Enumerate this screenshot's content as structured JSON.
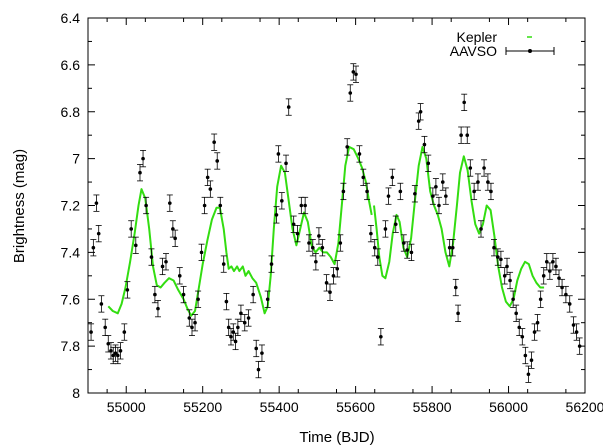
{
  "chart_data": {
    "type": "scatter",
    "xlabel": "Time (BJD)",
    "ylabel": "Brightness (mag)",
    "xlim": [
      54900,
      56200
    ],
    "ylim": [
      6.4,
      8.0
    ],
    "y_inverted": true,
    "grid": false,
    "legend_position": "top-right",
    "x_ticks": [
      {
        "value": 55000,
        "label": "55000"
      },
      {
        "value": 55200,
        "label": "55200"
      },
      {
        "value": 55400,
        "label": "55400"
      },
      {
        "value": 55600,
        "label": "55600"
      },
      {
        "value": 55800,
        "label": "55800"
      },
      {
        "value": 56000,
        "label": "56000"
      },
      {
        "value": 56200,
        "label": "56200"
      }
    ],
    "y_ticks": [
      {
        "value": 6.4,
        "label": "6.4"
      },
      {
        "value": 6.6,
        "label": "6.6"
      },
      {
        "value": 6.8,
        "label": "6.8"
      },
      {
        "value": 7.0,
        "label": "7"
      },
      {
        "value": 7.2,
        "label": "7.2"
      },
      {
        "value": 7.4,
        "label": "7.4"
      },
      {
        "value": 7.6,
        "label": "7.6"
      },
      {
        "value": 7.8,
        "label": "7.8"
      },
      {
        "value": 8.0,
        "label": "8"
      }
    ],
    "series": [
      {
        "name": "Kepler",
        "kind": "line",
        "color": "#33dd11",
        "segments": [
          [
            [
              54953,
              7.63
            ],
            [
              54965,
              7.65
            ],
            [
              54978,
              7.66
            ],
            [
              54988,
              7.62
            ],
            [
              54998,
              7.55
            ],
            [
              55010,
              7.44
            ],
            [
              55022,
              7.32
            ],
            [
              55032,
              7.2
            ],
            [
              55040,
              7.13
            ],
            [
              55050,
              7.17
            ],
            [
              55060,
              7.3
            ],
            [
              55070,
              7.46
            ],
            [
              55080,
              7.54
            ],
            [
              55090,
              7.55
            ],
            [
              55100,
              7.53
            ],
            [
              55112,
              7.51
            ],
            [
              55124,
              7.52
            ],
            [
              55136,
              7.56
            ],
            [
              55150,
              7.6
            ],
            [
              55160,
              7.64
            ],
            [
              55170,
              7.67
            ],
            [
              55180,
              7.65
            ],
            [
              55190,
              7.55
            ],
            [
              55200,
              7.45
            ],
            [
              55212,
              7.35
            ],
            [
              55224,
              7.26
            ],
            [
              55236,
              7.21
            ],
            [
              55245,
              7.21
            ],
            [
              55255,
              7.3
            ],
            [
              55262,
              7.4
            ],
            [
              55268,
              7.47
            ],
            [
              55275,
              7.46
            ],
            [
              55282,
              7.48
            ],
            [
              55290,
              7.46
            ],
            [
              55296,
              7.48
            ],
            [
              55305,
              7.46
            ],
            [
              55312,
              7.5
            ],
            [
              55320,
              7.48
            ],
            [
              55330,
              7.51
            ],
            [
              55340,
              7.53
            ],
            [
              55352,
              7.59
            ],
            [
              55362,
              7.66
            ],
            [
              55370,
              7.63
            ],
            [
              55378,
              7.5
            ],
            [
              55386,
              7.3
            ],
            [
              55395,
              7.12
            ],
            [
              55405,
              7.03
            ],
            [
              55415,
              7.06
            ],
            [
              55425,
              7.18
            ],
            [
              55435,
              7.3
            ],
            [
              55445,
              7.37
            ],
            [
              55455,
              7.3
            ],
            [
              55465,
              7.23
            ],
            [
              55475,
              7.27
            ],
            [
              55485,
              7.37
            ],
            [
              55495,
              7.4
            ],
            [
              55505,
              7.38
            ],
            [
              55515,
              7.4
            ],
            [
              55525,
              7.4
            ],
            [
              55535,
              7.42
            ],
            [
              55545,
              7.45
            ],
            [
              55555,
              7.36
            ],
            [
              55565,
              7.18
            ],
            [
              55573,
              7.03
            ],
            [
              55583,
              6.95
            ],
            [
              55595,
              6.96
            ],
            [
              55607,
              7.0
            ],
            [
              55617,
              7.04
            ],
            [
              55627,
              7.1
            ],
            [
              55635,
              7.18
            ],
            [
              55642,
              7.24
            ]
          ],
          [
            [
              55648,
              7.2
            ],
            [
              55655,
              7.3
            ],
            [
              55662,
              7.42
            ],
            [
              55670,
              7.5
            ],
            [
              55678,
              7.51
            ],
            [
              55688,
              7.44
            ],
            [
              55697,
              7.32
            ],
            [
              55707,
              7.24
            ],
            [
              55715,
              7.27
            ],
            [
              55725,
              7.38
            ],
            [
              55735,
              7.42
            ],
            [
              55745,
              7.34
            ],
            [
              55755,
              7.18
            ],
            [
              55765,
              7.03
            ],
            [
              55775,
              6.95
            ],
            [
              55785,
              7.0
            ],
            [
              55795,
              7.14
            ],
            [
              55805,
              7.2
            ],
            [
              55815,
              7.24
            ],
            [
              55825,
              7.3
            ],
            [
              55835,
              7.4
            ],
            [
              55845,
              7.46
            ],
            [
              55855,
              7.36
            ],
            [
              55865,
              7.2
            ],
            [
              55873,
              7.06
            ],
            [
              55883,
              6.99
            ],
            [
              55893,
              7.05
            ],
            [
              55903,
              7.18
            ],
            [
              55913,
              7.28
            ],
            [
              55923,
              7.32
            ],
            [
              55933,
              7.28
            ],
            [
              55943,
              7.2
            ],
            [
              55953,
              7.22
            ],
            [
              55963,
              7.33
            ],
            [
              55973,
              7.46
            ],
            [
              55983,
              7.55
            ],
            [
              55993,
              7.61
            ],
            [
              56003,
              7.63
            ],
            [
              56013,
              7.6
            ],
            [
              56023,
              7.52
            ],
            [
              56033,
              7.47
            ],
            [
              56043,
              7.44
            ],
            [
              56053,
              7.45
            ],
            [
              56063,
              7.5
            ],
            [
              56073,
              7.53
            ],
            [
              56083,
              7.55
            ],
            [
              56093,
              7.55
            ]
          ]
        ]
      },
      {
        "name": "AAVSO",
        "kind": "points_with_error_bars",
        "color": "#000000",
        "yerr": 0.035,
        "points": [
          [
            54908,
            7.74
          ],
          [
            54914,
            7.38
          ],
          [
            54922,
            7.19
          ],
          [
            54928,
            7.32
          ],
          [
            54935,
            7.62
          ],
          [
            54945,
            7.72
          ],
          [
            54953,
            7.79
          ],
          [
            54960,
            7.82
          ],
          [
            54966,
            7.84
          ],
          [
            54972,
            7.83
          ],
          [
            54978,
            7.84
          ],
          [
            54985,
            7.82
          ],
          [
            54995,
            7.74
          ],
          [
            55003,
            7.56
          ],
          [
            55013,
            7.3
          ],
          [
            55025,
            7.37
          ],
          [
            55036,
            7.06
          ],
          [
            55044,
            7.0
          ],
          [
            55052,
            7.2
          ],
          [
            55066,
            7.42
          ],
          [
            55075,
            7.58
          ],
          [
            55083,
            7.64
          ],
          [
            55095,
            7.46
          ],
          [
            55104,
            7.44
          ],
          [
            55114,
            7.19
          ],
          [
            55122,
            7.3
          ],
          [
            55128,
            7.34
          ],
          [
            55140,
            7.5
          ],
          [
            55150,
            7.58
          ],
          [
            55165,
            7.68
          ],
          [
            55172,
            7.72
          ],
          [
            55180,
            7.7
          ],
          [
            55188,
            7.6
          ],
          [
            55197,
            7.4
          ],
          [
            55205,
            7.2
          ],
          [
            55213,
            7.08
          ],
          [
            55220,
            7.13
          ],
          [
            55230,
            6.93
          ],
          [
            55238,
            7.01
          ],
          [
            55246,
            7.2
          ],
          [
            55255,
            7.45
          ],
          [
            55262,
            7.61
          ],
          [
            55268,
            7.72
          ],
          [
            55274,
            7.76
          ],
          [
            55280,
            7.74
          ],
          [
            55286,
            7.78
          ],
          [
            55292,
            7.72
          ],
          [
            55300,
            7.66
          ],
          [
            55310,
            7.7
          ],
          [
            55320,
            7.68
          ],
          [
            55332,
            7.58
          ],
          [
            55340,
            7.81
          ],
          [
            55346,
            7.9
          ],
          [
            55355,
            7.83
          ],
          [
            55370,
            7.6
          ],
          [
            55380,
            7.45
          ],
          [
            55393,
            7.24
          ],
          [
            55398,
            6.98
          ],
          [
            55407,
            7.18
          ],
          [
            55418,
            7.02
          ],
          [
            55425,
            6.78
          ],
          [
            55438,
            7.28
          ],
          [
            55448,
            7.32
          ],
          [
            55458,
            7.2
          ],
          [
            55468,
            7.2
          ],
          [
            55478,
            7.36
          ],
          [
            55488,
            7.38
          ],
          [
            55496,
            7.44
          ],
          [
            55504,
            7.33
          ],
          [
            55513,
            7.38
          ],
          [
            55524,
            7.53
          ],
          [
            55533,
            7.57
          ],
          [
            55542,
            7.5
          ],
          [
            55552,
            7.47
          ],
          [
            55560,
            7.36
          ],
          [
            55568,
            7.14
          ],
          [
            55578,
            6.95
          ],
          [
            55586,
            6.72
          ],
          [
            55594,
            6.63
          ],
          [
            55601,
            6.64
          ],
          [
            55610,
            6.98
          ],
          [
            55620,
            7.08
          ],
          [
            55630,
            7.14
          ],
          [
            55640,
            7.32
          ],
          [
            55650,
            7.38
          ],
          [
            55658,
            7.42
          ],
          [
            55666,
            7.76
          ],
          [
            55678,
            7.3
          ],
          [
            55686,
            7.16
          ],
          [
            55696,
            7.08
          ],
          [
            55705,
            7.28
          ],
          [
            55717,
            7.14
          ],
          [
            55726,
            7.36
          ],
          [
            55735,
            7.39
          ],
          [
            55746,
            7.4
          ],
          [
            55755,
            7.15
          ],
          [
            55765,
            6.84
          ],
          [
            55770,
            6.8
          ],
          [
            55780,
            6.94
          ],
          [
            55790,
            7.02
          ],
          [
            55802,
            7.16
          ],
          [
            55810,
            7.12
          ],
          [
            55818,
            7.2
          ],
          [
            55828,
            7.1
          ],
          [
            55836,
            7.16
          ],
          [
            55846,
            7.38
          ],
          [
            55854,
            7.38
          ],
          [
            55862,
            7.55
          ],
          [
            55868,
            7.66
          ],
          [
            55876,
            6.9
          ],
          [
            55884,
            6.76
          ],
          [
            55892,
            6.9
          ],
          [
            55900,
            7.04
          ],
          [
            55910,
            7.14
          ],
          [
            55920,
            7.1
          ],
          [
            55928,
            7.3
          ],
          [
            55936,
            7.04
          ],
          [
            55946,
            7.1
          ],
          [
            55954,
            7.14
          ],
          [
            55962,
            7.38
          ],
          [
            55972,
            7.42
          ],
          [
            55980,
            7.43
          ],
          [
            55990,
            7.5
          ],
          [
            55996,
            7.46
          ],
          [
            56004,
            7.52
          ],
          [
            56012,
            7.6
          ],
          [
            56020,
            7.66
          ],
          [
            56028,
            7.72
          ],
          [
            56036,
            7.76
          ],
          [
            56044,
            7.84
          ],
          [
            56052,
            7.92
          ],
          [
            56060,
            7.86
          ],
          [
            56068,
            7.74
          ],
          [
            56076,
            7.7
          ],
          [
            56084,
            7.6
          ],
          [
            56092,
            7.5
          ],
          [
            56100,
            7.44
          ],
          [
            56108,
            7.48
          ],
          [
            56116,
            7.44
          ],
          [
            56124,
            7.46
          ],
          [
            56132,
            7.51
          ],
          [
            56140,
            7.55
          ],
          [
            56150,
            7.58
          ],
          [
            56160,
            7.62
          ],
          [
            56170,
            7.71
          ],
          [
            56178,
            7.74
          ],
          [
            56186,
            7.8
          ]
        ]
      }
    ]
  }
}
